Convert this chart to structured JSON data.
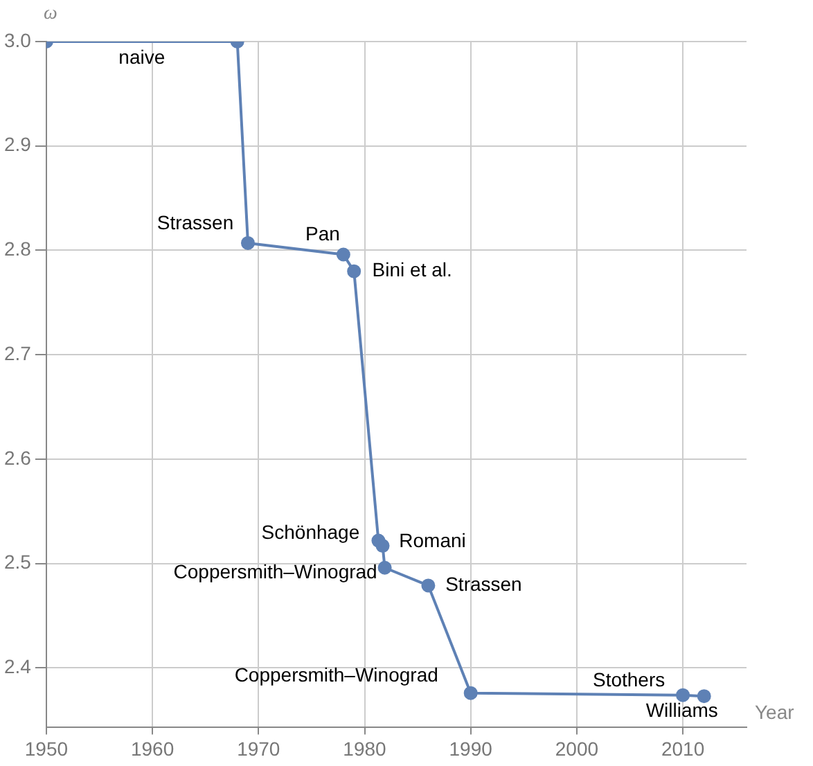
{
  "chart_data": {
    "type": "line",
    "xlabel": "Year",
    "ylabel": "ω",
    "x": [
      1950,
      1968,
      1969,
      1978,
      1979,
      1981.3,
      1981.7,
      1981.9,
      1986,
      1990,
      2010,
      2012
    ],
    "series": [
      {
        "color": "#5e81b5",
        "values": [
          3.0,
          3.0,
          2.807,
          2.796,
          2.78,
          2.522,
          2.517,
          2.496,
          2.479,
          2.376,
          2.374,
          2.373
        ]
      }
    ],
    "xlim": [
      1950,
      2016
    ],
    "xticks": [
      1950,
      1960,
      1970,
      1980,
      1990,
      2000,
      2010
    ],
    "ylim": [
      2.343,
      3.0
    ],
    "yticks": [
      {
        "value": 2.4,
        "label": "2.4"
      },
      {
        "value": 2.5,
        "label": "2.5"
      },
      {
        "value": 2.6,
        "label": "2.6"
      },
      {
        "value": 2.7,
        "label": "2.7"
      },
      {
        "value": 2.8,
        "label": "2.8"
      },
      {
        "value": 2.9,
        "label": "2.9"
      },
      {
        "value": 3.0,
        "label": "3.0"
      }
    ],
    "grid": true,
    "marker": "circle",
    "line_style": "solid",
    "annotations": [
      {
        "text": "naive",
        "x": 1959,
        "y": 3.0
      },
      {
        "text": "Strassen",
        "x": 1969,
        "y": 2.807
      },
      {
        "text": "Pan",
        "x": 1978,
        "y": 2.796
      },
      {
        "text": "Bini et al.",
        "x": 1979,
        "y": 2.78
      },
      {
        "text": "Schönhage",
        "x": 1981.3,
        "y": 2.522
      },
      {
        "text": "Romani",
        "x": 1981.7,
        "y": 2.517
      },
      {
        "text": "Coppersmith–Winograd",
        "x": 1981.9,
        "y": 2.496
      },
      {
        "text": "Strassen",
        "x": 1986,
        "y": 2.479
      },
      {
        "text": "Coppersmith–Winograd",
        "x": 1990,
        "y": 2.376
      },
      {
        "text": "Stothers",
        "x": 2010,
        "y": 2.374
      },
      {
        "text": "Williams",
        "x": 2012,
        "y": 2.373
      }
    ]
  }
}
